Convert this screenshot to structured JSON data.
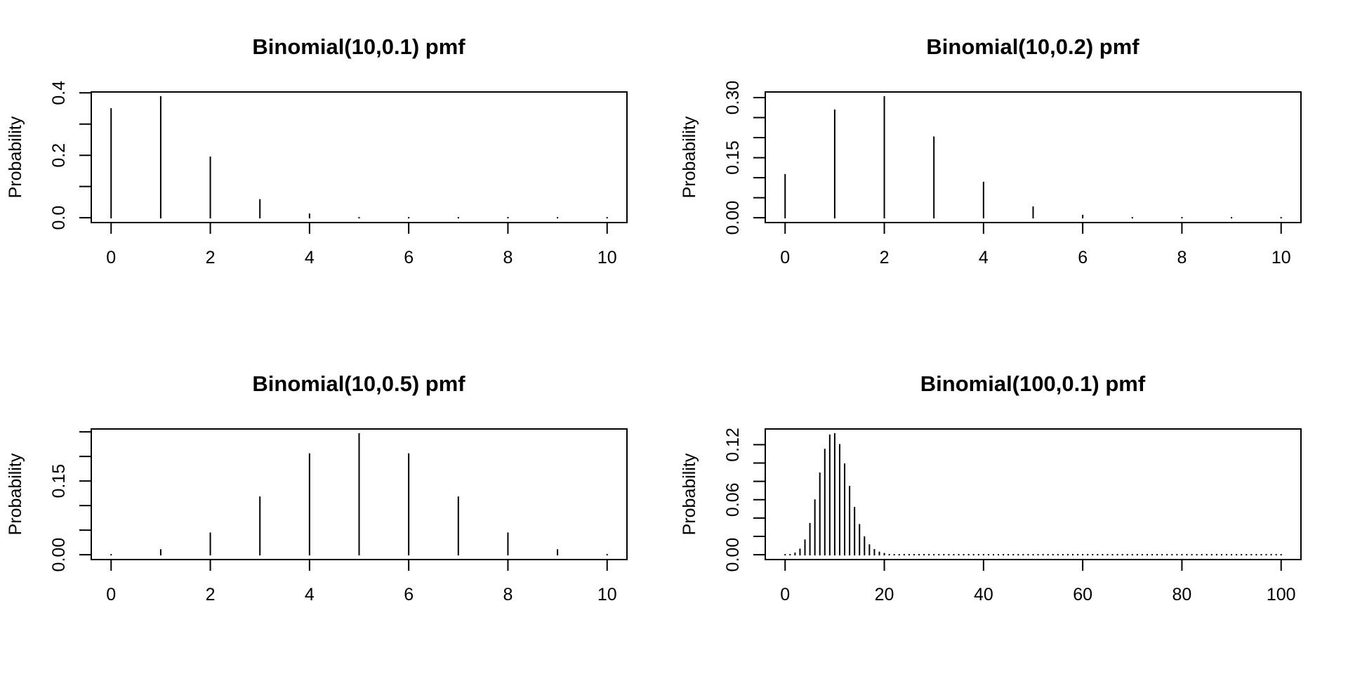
{
  "chart_data": [
    {
      "type": "bar",
      "style": "spike",
      "title": "Binomial(10,0.1) pmf",
      "xlabel": "",
      "ylabel": "Probability",
      "x": [
        0,
        1,
        2,
        3,
        4,
        5,
        6,
        7,
        8,
        9,
        10
      ],
      "values": [
        0.3487,
        0.3874,
        0.1937,
        0.0574,
        0.0112,
        0.0015,
        0.0001,
        0.0,
        0.0,
        0.0,
        0.0
      ],
      "xlim": [
        0,
        10
      ],
      "ylim": [
        0,
        0.3874
      ],
      "x_ticks": [
        0,
        2,
        4,
        6,
        8,
        10
      ],
      "x_tick_labels": [
        "0",
        "2",
        "4",
        "6",
        "8",
        "10"
      ],
      "y_ticks": [
        0,
        0.1,
        0.2,
        0.3,
        0.4
      ],
      "y_tick_labels": [
        "0.0",
        "",
        "0.2",
        "",
        "0.4"
      ],
      "grid": false
    },
    {
      "type": "bar",
      "style": "spike",
      "title": "Binomial(10,0.2) pmf",
      "xlabel": "",
      "ylabel": "Probability",
      "x": [
        0,
        1,
        2,
        3,
        4,
        5,
        6,
        7,
        8,
        9,
        10
      ],
      "values": [
        0.1074,
        0.2684,
        0.302,
        0.2013,
        0.0881,
        0.0264,
        0.0055,
        0.0008,
        0.0001,
        0.0,
        0.0
      ],
      "xlim": [
        0,
        10
      ],
      "ylim": [
        0,
        0.302
      ],
      "x_ticks": [
        0,
        2,
        4,
        6,
        8,
        10
      ],
      "x_tick_labels": [
        "0",
        "2",
        "4",
        "6",
        "8",
        "10"
      ],
      "y_ticks": [
        0,
        0.05,
        0.1,
        0.15,
        0.2,
        0.25,
        0.3
      ],
      "y_tick_labels": [
        "0.00",
        "",
        "",
        "0.15",
        "",
        "",
        "0.30"
      ],
      "grid": false
    },
    {
      "type": "bar",
      "style": "spike",
      "title": "Binomial(10,0.5) pmf",
      "xlabel": "",
      "ylabel": "Probability",
      "x": [
        0,
        1,
        2,
        3,
        4,
        5,
        6,
        7,
        8,
        9,
        10
      ],
      "values": [
        0.001,
        0.0098,
        0.0439,
        0.1172,
        0.2051,
        0.2461,
        0.2051,
        0.1172,
        0.0439,
        0.0098,
        0.001
      ],
      "xlim": [
        0,
        10
      ],
      "ylim": [
        0,
        0.2461
      ],
      "x_ticks": [
        0,
        2,
        4,
        6,
        8,
        10
      ],
      "x_tick_labels": [
        "0",
        "2",
        "4",
        "6",
        "8",
        "10"
      ],
      "y_ticks": [
        0,
        0.05,
        0.1,
        0.15,
        0.2,
        0.25
      ],
      "y_tick_labels": [
        "0.00",
        "",
        "",
        "0.15",
        "",
        ""
      ],
      "grid": false
    },
    {
      "type": "bar",
      "style": "spike",
      "title": "Binomial(100,0.1) pmf",
      "xlabel": "",
      "ylabel": "Probability",
      "x_range": [
        0,
        100
      ],
      "values": [
        0.0,
        0.0003,
        0.0016,
        0.0059,
        0.0159,
        0.0339,
        0.0596,
        0.0889,
        0.1148,
        0.1304,
        0.1319,
        0.1199,
        0.0988,
        0.0743,
        0.0513,
        0.0327,
        0.0193,
        0.0106,
        0.0054,
        0.0026,
        0.0012,
        0.0005,
        0.0002,
        0.0001,
        0.0,
        0.0,
        0.0,
        0.0,
        0.0,
        0.0,
        0.0,
        0.0,
        0.0,
        0.0,
        0.0,
        0.0,
        0.0,
        0.0,
        0.0,
        0.0,
        0.0,
        0.0,
        0.0,
        0.0,
        0.0,
        0.0,
        0.0,
        0.0,
        0.0,
        0.0,
        0.0,
        0.0,
        0.0,
        0.0,
        0.0,
        0.0,
        0.0,
        0.0,
        0.0,
        0.0,
        0.0,
        0.0,
        0.0,
        0.0,
        0.0,
        0.0,
        0.0,
        0.0,
        0.0,
        0.0,
        0.0,
        0.0,
        0.0,
        0.0,
        0.0,
        0.0,
        0.0,
        0.0,
        0.0,
        0.0,
        0.0,
        0.0,
        0.0,
        0.0,
        0.0,
        0.0,
        0.0,
        0.0,
        0.0,
        0.0,
        0.0,
        0.0,
        0.0,
        0.0,
        0.0,
        0.0,
        0.0,
        0.0,
        0.0,
        0.0,
        0.0
      ],
      "xlim": [
        0,
        100
      ],
      "ylim": [
        0,
        0.1319
      ],
      "x_ticks": [
        0,
        20,
        40,
        60,
        80,
        100
      ],
      "x_tick_labels": [
        "0",
        "20",
        "40",
        "60",
        "80",
        "100"
      ],
      "y_ticks": [
        0,
        0.02,
        0.04,
        0.06,
        0.08,
        0.1,
        0.12
      ],
      "y_tick_labels": [
        "0.00",
        "",
        "",
        "0.06",
        "",
        "",
        "0.12"
      ],
      "grid": false
    }
  ]
}
